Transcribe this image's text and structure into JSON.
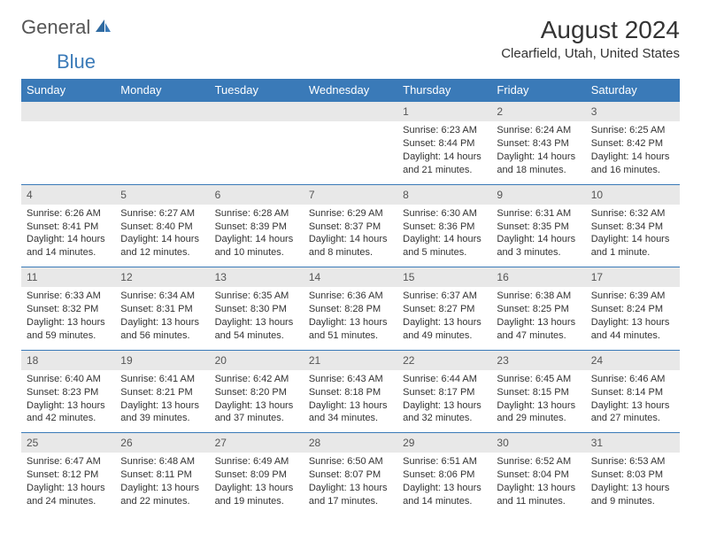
{
  "logo": {
    "gray": "General",
    "blue": "Blue"
  },
  "title": {
    "month_year": "August 2024",
    "location": "Clearfield, Utah, United States"
  },
  "calendar": {
    "header_bg": "#3a7ab8",
    "header_fg": "#ffffff",
    "daynum_bg": "#e8e8e8",
    "row_border": "#3a7ab8",
    "font_size_body": 11,
    "days": [
      "Sunday",
      "Monday",
      "Tuesday",
      "Wednesday",
      "Thursday",
      "Friday",
      "Saturday"
    ],
    "weeks": [
      [
        null,
        null,
        null,
        null,
        {
          "n": "1",
          "sr": "Sunrise: 6:23 AM",
          "ss": "Sunset: 8:44 PM",
          "dl": "Daylight: 14 hours and 21 minutes."
        },
        {
          "n": "2",
          "sr": "Sunrise: 6:24 AM",
          "ss": "Sunset: 8:43 PM",
          "dl": "Daylight: 14 hours and 18 minutes."
        },
        {
          "n": "3",
          "sr": "Sunrise: 6:25 AM",
          "ss": "Sunset: 8:42 PM",
          "dl": "Daylight: 14 hours and 16 minutes."
        }
      ],
      [
        {
          "n": "4",
          "sr": "Sunrise: 6:26 AM",
          "ss": "Sunset: 8:41 PM",
          "dl": "Daylight: 14 hours and 14 minutes."
        },
        {
          "n": "5",
          "sr": "Sunrise: 6:27 AM",
          "ss": "Sunset: 8:40 PM",
          "dl": "Daylight: 14 hours and 12 minutes."
        },
        {
          "n": "6",
          "sr": "Sunrise: 6:28 AM",
          "ss": "Sunset: 8:39 PM",
          "dl": "Daylight: 14 hours and 10 minutes."
        },
        {
          "n": "7",
          "sr": "Sunrise: 6:29 AM",
          "ss": "Sunset: 8:37 PM",
          "dl": "Daylight: 14 hours and 8 minutes."
        },
        {
          "n": "8",
          "sr": "Sunrise: 6:30 AM",
          "ss": "Sunset: 8:36 PM",
          "dl": "Daylight: 14 hours and 5 minutes."
        },
        {
          "n": "9",
          "sr": "Sunrise: 6:31 AM",
          "ss": "Sunset: 8:35 PM",
          "dl": "Daylight: 14 hours and 3 minutes."
        },
        {
          "n": "10",
          "sr": "Sunrise: 6:32 AM",
          "ss": "Sunset: 8:34 PM",
          "dl": "Daylight: 14 hours and 1 minute."
        }
      ],
      [
        {
          "n": "11",
          "sr": "Sunrise: 6:33 AM",
          "ss": "Sunset: 8:32 PM",
          "dl": "Daylight: 13 hours and 59 minutes."
        },
        {
          "n": "12",
          "sr": "Sunrise: 6:34 AM",
          "ss": "Sunset: 8:31 PM",
          "dl": "Daylight: 13 hours and 56 minutes."
        },
        {
          "n": "13",
          "sr": "Sunrise: 6:35 AM",
          "ss": "Sunset: 8:30 PM",
          "dl": "Daylight: 13 hours and 54 minutes."
        },
        {
          "n": "14",
          "sr": "Sunrise: 6:36 AM",
          "ss": "Sunset: 8:28 PM",
          "dl": "Daylight: 13 hours and 51 minutes."
        },
        {
          "n": "15",
          "sr": "Sunrise: 6:37 AM",
          "ss": "Sunset: 8:27 PM",
          "dl": "Daylight: 13 hours and 49 minutes."
        },
        {
          "n": "16",
          "sr": "Sunrise: 6:38 AM",
          "ss": "Sunset: 8:25 PM",
          "dl": "Daylight: 13 hours and 47 minutes."
        },
        {
          "n": "17",
          "sr": "Sunrise: 6:39 AM",
          "ss": "Sunset: 8:24 PM",
          "dl": "Daylight: 13 hours and 44 minutes."
        }
      ],
      [
        {
          "n": "18",
          "sr": "Sunrise: 6:40 AM",
          "ss": "Sunset: 8:23 PM",
          "dl": "Daylight: 13 hours and 42 minutes."
        },
        {
          "n": "19",
          "sr": "Sunrise: 6:41 AM",
          "ss": "Sunset: 8:21 PM",
          "dl": "Daylight: 13 hours and 39 minutes."
        },
        {
          "n": "20",
          "sr": "Sunrise: 6:42 AM",
          "ss": "Sunset: 8:20 PM",
          "dl": "Daylight: 13 hours and 37 minutes."
        },
        {
          "n": "21",
          "sr": "Sunrise: 6:43 AM",
          "ss": "Sunset: 8:18 PM",
          "dl": "Daylight: 13 hours and 34 minutes."
        },
        {
          "n": "22",
          "sr": "Sunrise: 6:44 AM",
          "ss": "Sunset: 8:17 PM",
          "dl": "Daylight: 13 hours and 32 minutes."
        },
        {
          "n": "23",
          "sr": "Sunrise: 6:45 AM",
          "ss": "Sunset: 8:15 PM",
          "dl": "Daylight: 13 hours and 29 minutes."
        },
        {
          "n": "24",
          "sr": "Sunrise: 6:46 AM",
          "ss": "Sunset: 8:14 PM",
          "dl": "Daylight: 13 hours and 27 minutes."
        }
      ],
      [
        {
          "n": "25",
          "sr": "Sunrise: 6:47 AM",
          "ss": "Sunset: 8:12 PM",
          "dl": "Daylight: 13 hours and 24 minutes."
        },
        {
          "n": "26",
          "sr": "Sunrise: 6:48 AM",
          "ss": "Sunset: 8:11 PM",
          "dl": "Daylight: 13 hours and 22 minutes."
        },
        {
          "n": "27",
          "sr": "Sunrise: 6:49 AM",
          "ss": "Sunset: 8:09 PM",
          "dl": "Daylight: 13 hours and 19 minutes."
        },
        {
          "n": "28",
          "sr": "Sunrise: 6:50 AM",
          "ss": "Sunset: 8:07 PM",
          "dl": "Daylight: 13 hours and 17 minutes."
        },
        {
          "n": "29",
          "sr": "Sunrise: 6:51 AM",
          "ss": "Sunset: 8:06 PM",
          "dl": "Daylight: 13 hours and 14 minutes."
        },
        {
          "n": "30",
          "sr": "Sunrise: 6:52 AM",
          "ss": "Sunset: 8:04 PM",
          "dl": "Daylight: 13 hours and 11 minutes."
        },
        {
          "n": "31",
          "sr": "Sunrise: 6:53 AM",
          "ss": "Sunset: 8:03 PM",
          "dl": "Daylight: 13 hours and 9 minutes."
        }
      ]
    ]
  }
}
